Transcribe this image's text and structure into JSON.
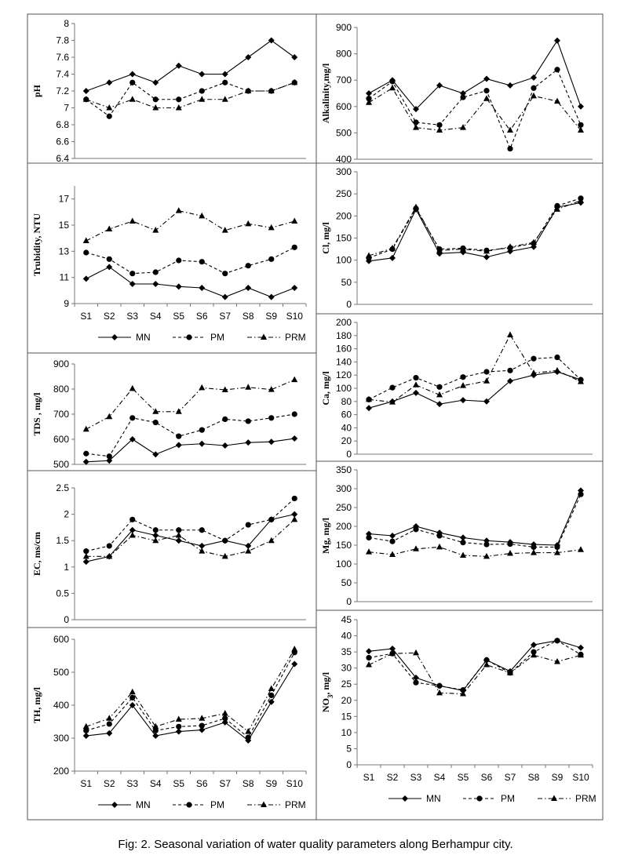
{
  "caption": "Fig: 2. Seasonal variation of water quality parameters along Berhampur city.",
  "series_styles": [
    {
      "name": "MN",
      "marker": "diamond",
      "dash": "solid"
    },
    {
      "name": "PM",
      "marker": "circle",
      "dash": "dash"
    },
    {
      "name": "PRM",
      "marker": "triangle",
      "dash": "dashdot"
    }
  ],
  "chart_data": [
    {
      "id": "ph",
      "type": "line",
      "ylabel": "pH",
      "ylim": [
        6.4,
        8
      ],
      "yticks": [
        "6.4",
        "6.6",
        "6.8",
        "7",
        "7.2",
        "7.4",
        "7.6",
        "7.8",
        "8"
      ],
      "categories": [
        "S1",
        "S2",
        "S3",
        "S4",
        "S5",
        "S6",
        "S7",
        "S8",
        "S9",
        "S10"
      ],
      "show_xticks": false,
      "grid": false,
      "series": [
        {
          "name": "MN",
          "values": [
            7.2,
            7.3,
            7.4,
            7.3,
            7.5,
            7.4,
            7.4,
            7.6,
            7.8,
            7.6
          ]
        },
        {
          "name": "PM",
          "values": [
            7.1,
            6.9,
            7.3,
            7.1,
            7.1,
            7.2,
            7.3,
            7.2,
            7.2,
            7.3
          ]
        },
        {
          "name": "PRM",
          "values": [
            7.1,
            7.0,
            7.1,
            7.0,
            7.0,
            7.1,
            7.1,
            7.2,
            7.2,
            7.3
          ]
        }
      ]
    },
    {
      "id": "alkalinity",
      "type": "line",
      "ylabel": "Alkalinity,mg/l",
      "ylim": [
        400,
        900
      ],
      "yticks": [
        "400",
        "500",
        "600",
        "700",
        "800",
        "900"
      ],
      "categories": [
        "S1",
        "S2",
        "S3",
        "S4",
        "S5",
        "S6",
        "S7",
        "S8",
        "S9",
        "S10"
      ],
      "show_xticks": false,
      "grid": false,
      "series": [
        {
          "name": "MN",
          "values": [
            650,
            700,
            590,
            680,
            650,
            705,
            680,
            710,
            850,
            600
          ]
        },
        {
          "name": "PM",
          "values": [
            630,
            695,
            540,
            530,
            635,
            660,
            440,
            670,
            740,
            530
          ]
        },
        {
          "name": "PRM",
          "values": [
            615,
            670,
            520,
            510,
            520,
            630,
            510,
            640,
            620,
            510
          ]
        }
      ]
    },
    {
      "id": "turbidity",
      "type": "line",
      "ylabel": "Trubidity, NTU",
      "ylim": [
        9,
        18
      ],
      "yticks": [
        "9",
        "11",
        "13",
        "15",
        "17"
      ],
      "categories": [
        "S1",
        "S2",
        "S3",
        "S4",
        "S5",
        "S6",
        "S7",
        "S8",
        "S9",
        "S10"
      ],
      "show_xticks": true,
      "grid": false,
      "legend": [
        "MN",
        "PM",
        "PRM"
      ],
      "series": [
        {
          "name": "MN",
          "values": [
            10.9,
            11.8,
            10.5,
            10.5,
            10.3,
            10.2,
            9.5,
            10.2,
            9.5,
            10.2
          ]
        },
        {
          "name": "PM",
          "values": [
            12.9,
            12.4,
            11.3,
            11.4,
            12.3,
            12.2,
            11.3,
            11.9,
            12.4,
            13.3
          ]
        },
        {
          "name": "PRM",
          "values": [
            13.8,
            14.7,
            15.3,
            14.6,
            16.1,
            15.7,
            14.6,
            15.1,
            14.8,
            15.3
          ]
        }
      ]
    },
    {
      "id": "chloride",
      "type": "line",
      "ylabel": "Cl, mg/l",
      "ylim": [
        0,
        300
      ],
      "yticks": [
        "0",
        "50",
        "100",
        "150",
        "200",
        "250",
        "300"
      ],
      "categories": [
        "S1",
        "S2",
        "S3",
        "S4",
        "S5",
        "S6",
        "S7",
        "S8",
        "S9",
        "S10"
      ],
      "show_xticks": false,
      "grid": false,
      "series": [
        {
          "name": "MN",
          "values": [
            98,
            105,
            215,
            115,
            118,
            107,
            120,
            130,
            220,
            230
          ]
        },
        {
          "name": "PM",
          "values": [
            105,
            125,
            217,
            125,
            127,
            122,
            128,
            138,
            223,
            240
          ]
        },
        {
          "name": "PRM",
          "values": [
            110,
            127,
            220,
            122,
            125,
            120,
            130,
            140,
            215,
            235
          ]
        }
      ]
    },
    {
      "id": "tds",
      "type": "line",
      "ylabel": "TDS , mg/l",
      "ylim": [
        500,
        900
      ],
      "yticks": [
        "500",
        "600",
        "700",
        "800",
        "900"
      ],
      "categories": [
        "S1",
        "S2",
        "S3",
        "S4",
        "S5",
        "S6",
        "S7",
        "S8",
        "S9",
        "S10"
      ],
      "show_xticks": false,
      "grid": false,
      "series": [
        {
          "name": "MN",
          "values": [
            510,
            515,
            600,
            540,
            577,
            582,
            575,
            587,
            590,
            603
          ]
        },
        {
          "name": "PM",
          "values": [
            543,
            532,
            685,
            667,
            612,
            637,
            680,
            672,
            685,
            700
          ]
        },
        {
          "name": "PRM",
          "values": [
            640,
            690,
            802,
            710,
            710,
            805,
            797,
            807,
            798,
            837
          ]
        }
      ]
    },
    {
      "id": "calcium",
      "type": "line",
      "ylabel": "Ca, mg/l",
      "ylim": [
        0,
        200
      ],
      "yticks": [
        "0",
        "20",
        "40",
        "60",
        "80",
        "100",
        "120",
        "140",
        "160",
        "180",
        "200"
      ],
      "categories": [
        "S1",
        "S2",
        "S3",
        "S4",
        "S5",
        "S6",
        "S7",
        "S8",
        "S9",
        "S10"
      ],
      "show_xticks": false,
      "grid": false,
      "series": [
        {
          "name": "MN",
          "values": [
            70,
            80,
            93,
            76,
            82,
            80,
            111,
            120,
            125,
            113
          ]
        },
        {
          "name": "PM",
          "values": [
            83,
            101,
            116,
            102,
            117,
            125,
            127,
            145,
            147,
            113
          ]
        },
        {
          "name": "PRM",
          "values": [
            83,
            79,
            105,
            90,
            104,
            111,
            181,
            123,
            127,
            110
          ]
        }
      ]
    },
    {
      "id": "ec",
      "type": "line",
      "ylabel": "EC, ms/cm",
      "ylim": [
        0,
        2.5
      ],
      "yticks": [
        "0",
        "0.5",
        "1",
        "1.5",
        "2",
        "2.5"
      ],
      "categories": [
        "S1",
        "S2",
        "S3",
        "S4",
        "S5",
        "S6",
        "S7",
        "S8",
        "S9",
        "S10"
      ],
      "show_xticks": false,
      "grid": false,
      "series": [
        {
          "name": "MN",
          "values": [
            1.1,
            1.2,
            1.7,
            1.6,
            1.5,
            1.4,
            1.5,
            1.4,
            1.9,
            2.0
          ]
        },
        {
          "name": "PM",
          "values": [
            1.3,
            1.4,
            1.9,
            1.7,
            1.7,
            1.7,
            1.5,
            1.8,
            1.9,
            2.3
          ]
        },
        {
          "name": "PRM",
          "values": [
            1.2,
            1.2,
            1.6,
            1.5,
            1.6,
            1.3,
            1.2,
            1.3,
            1.5,
            1.9
          ]
        }
      ]
    },
    {
      "id": "magnesium",
      "type": "line",
      "ylabel": "Mg, mg/l",
      "ylim": [
        0,
        350
      ],
      "yticks": [
        "0",
        "50",
        "100",
        "150",
        "200",
        "250",
        "300",
        "350"
      ],
      "categories": [
        "S1",
        "S2",
        "S3",
        "S4",
        "S5",
        "S6",
        "S7",
        "S8",
        "S9",
        "S10"
      ],
      "show_xticks": false,
      "grid": false,
      "series": [
        {
          "name": "MN",
          "values": [
            180,
            175,
            200,
            183,
            170,
            162,
            158,
            152,
            150,
            295
          ]
        },
        {
          "name": "PM",
          "values": [
            170,
            160,
            192,
            175,
            157,
            152,
            153,
            145,
            145,
            285
          ]
        },
        {
          "name": "PRM",
          "values": [
            132,
            125,
            140,
            145,
            123,
            120,
            128,
            130,
            130,
            138
          ]
        }
      ]
    },
    {
      "id": "hardness",
      "type": "line",
      "ylabel": "TH, mg/l",
      "ylim": [
        200,
        600
      ],
      "yticks": [
        "200",
        "300",
        "400",
        "500",
        "600"
      ],
      "categories": [
        "S1",
        "S2",
        "S3",
        "S4",
        "S5",
        "S6",
        "S7",
        "S8",
        "S9",
        "S10"
      ],
      "show_xticks": true,
      "grid": false,
      "legend": [
        "MN",
        "PM",
        "PRM"
      ],
      "series": [
        {
          "name": "MN",
          "values": [
            307,
            315,
            400,
            307,
            320,
            325,
            348,
            293,
            410,
            525
          ]
        },
        {
          "name": "PM",
          "values": [
            323,
            343,
            423,
            323,
            335,
            338,
            360,
            302,
            430,
            560
          ]
        },
        {
          "name": "PRM",
          "values": [
            335,
            360,
            440,
            335,
            357,
            360,
            375,
            320,
            450,
            570
          ]
        }
      ]
    },
    {
      "id": "nitrate",
      "type": "line",
      "ylabel": "NO3, mg/l",
      "ylim": [
        0,
        45
      ],
      "yticks": [
        "0",
        "5",
        "10",
        "15",
        "20",
        "25",
        "30",
        "35",
        "40",
        "45"
      ],
      "categories": [
        "S1",
        "S2",
        "S3",
        "S4",
        "S5",
        "S6",
        "S7",
        "S8",
        "S9",
        "S10"
      ],
      "show_xticks": true,
      "grid": false,
      "legend": [
        "MN",
        "PM",
        "PRM"
      ],
      "series": [
        {
          "name": "MN",
          "values": [
            35.2,
            36.0,
            27.0,
            24.5,
            23.0,
            32.5,
            29.0,
            37.2,
            38.5,
            36.3
          ]
        },
        {
          "name": "PM",
          "values": [
            33.2,
            34.5,
            25.5,
            24.5,
            23.2,
            32.5,
            28.5,
            35.0,
            38.5,
            34.2
          ]
        },
        {
          "name": "PRM",
          "values": [
            31.0,
            34.5,
            34.7,
            22.3,
            22.0,
            31.0,
            28.5,
            34.0,
            32.0,
            34.0
          ]
        }
      ]
    }
  ]
}
